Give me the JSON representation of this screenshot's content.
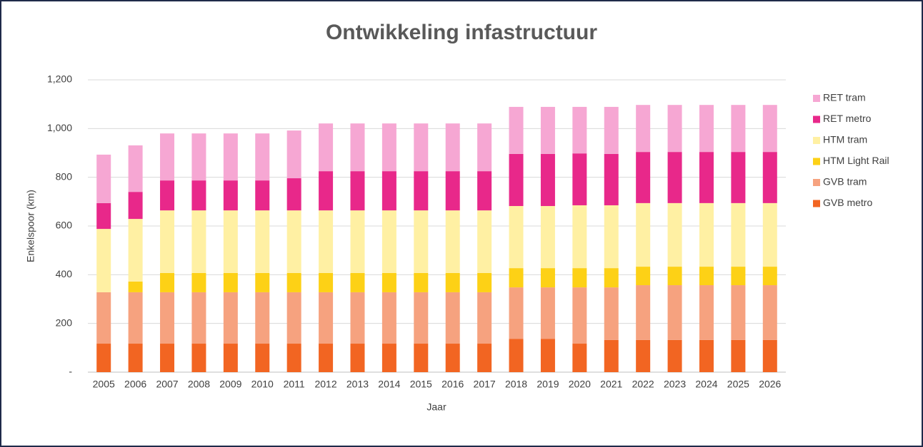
{
  "chart_data": {
    "type": "stacked_bar",
    "title": "Ontwikkeling infastructuur",
    "x_label": "Jaar",
    "y_label": "Enkelspoor (km)",
    "categories": [
      "2005",
      "2006",
      "2007",
      "2008",
      "2009",
      "2010",
      "2011",
      "2012",
      "2013",
      "2014",
      "2015",
      "2016",
      "2017",
      "2018",
      "2019",
      "2020",
      "2021",
      "2022",
      "2023",
      "2024",
      "2025",
      "2026"
    ],
    "series": [
      {
        "name": "GVB metro",
        "color": "#f26522",
        "values": [
          117,
          117,
          117,
          117,
          117,
          117,
          117,
          117,
          117,
          117,
          117,
          117,
          117,
          137,
          137,
          117,
          132,
          132,
          132,
          132,
          132,
          132
        ]
      },
      {
        "name": "GVB tram",
        "color": "#f6a27f",
        "values": [
          211,
          211,
          211,
          211,
          211,
          211,
          211,
          211,
          211,
          211,
          211,
          211,
          211,
          211,
          211,
          231,
          216,
          225,
          225,
          225,
          225,
          225
        ]
      },
      {
        "name": "HTM Light Rail",
        "color": "#fdd116",
        "values": [
          0,
          44,
          79,
          79,
          79,
          79,
          79,
          79,
          79,
          79,
          79,
          79,
          79,
          79,
          79,
          79,
          79,
          76,
          76,
          76,
          76,
          76
        ]
      },
      {
        "name": "HTM tram",
        "color": "#fff0a3",
        "values": [
          260,
          257,
          257,
          257,
          257,
          257,
          257,
          257,
          257,
          257,
          257,
          257,
          257,
          255,
          255,
          258,
          258,
          261,
          261,
          261,
          261,
          261
        ]
      },
      {
        "name": "RET metro",
        "color": "#e8288a",
        "values": [
          106,
          111,
          123,
          123,
          123,
          123,
          132,
          161,
          161,
          161,
          161,
          161,
          161,
          214,
          214,
          213,
          211,
          210,
          210,
          210,
          210,
          210
        ]
      },
      {
        "name": "RET tram",
        "color": "#f6a7d3",
        "values": [
          199,
          191,
          193,
          193,
          193,
          193,
          196,
          196,
          196,
          196,
          196,
          196,
          196,
          193,
          193,
          191,
          193,
          193,
          193,
          193,
          193,
          193
        ]
      }
    ],
    "ylim": [
      0,
      1200
    ],
    "yticks": [
      {
        "value": 0,
        "label": "-"
      },
      200,
      400,
      600,
      800,
      {
        "value": 1000,
        "label": "1,000"
      },
      {
        "value": 1200,
        "label": "1,200"
      }
    ],
    "grid": true,
    "legend": "right"
  }
}
